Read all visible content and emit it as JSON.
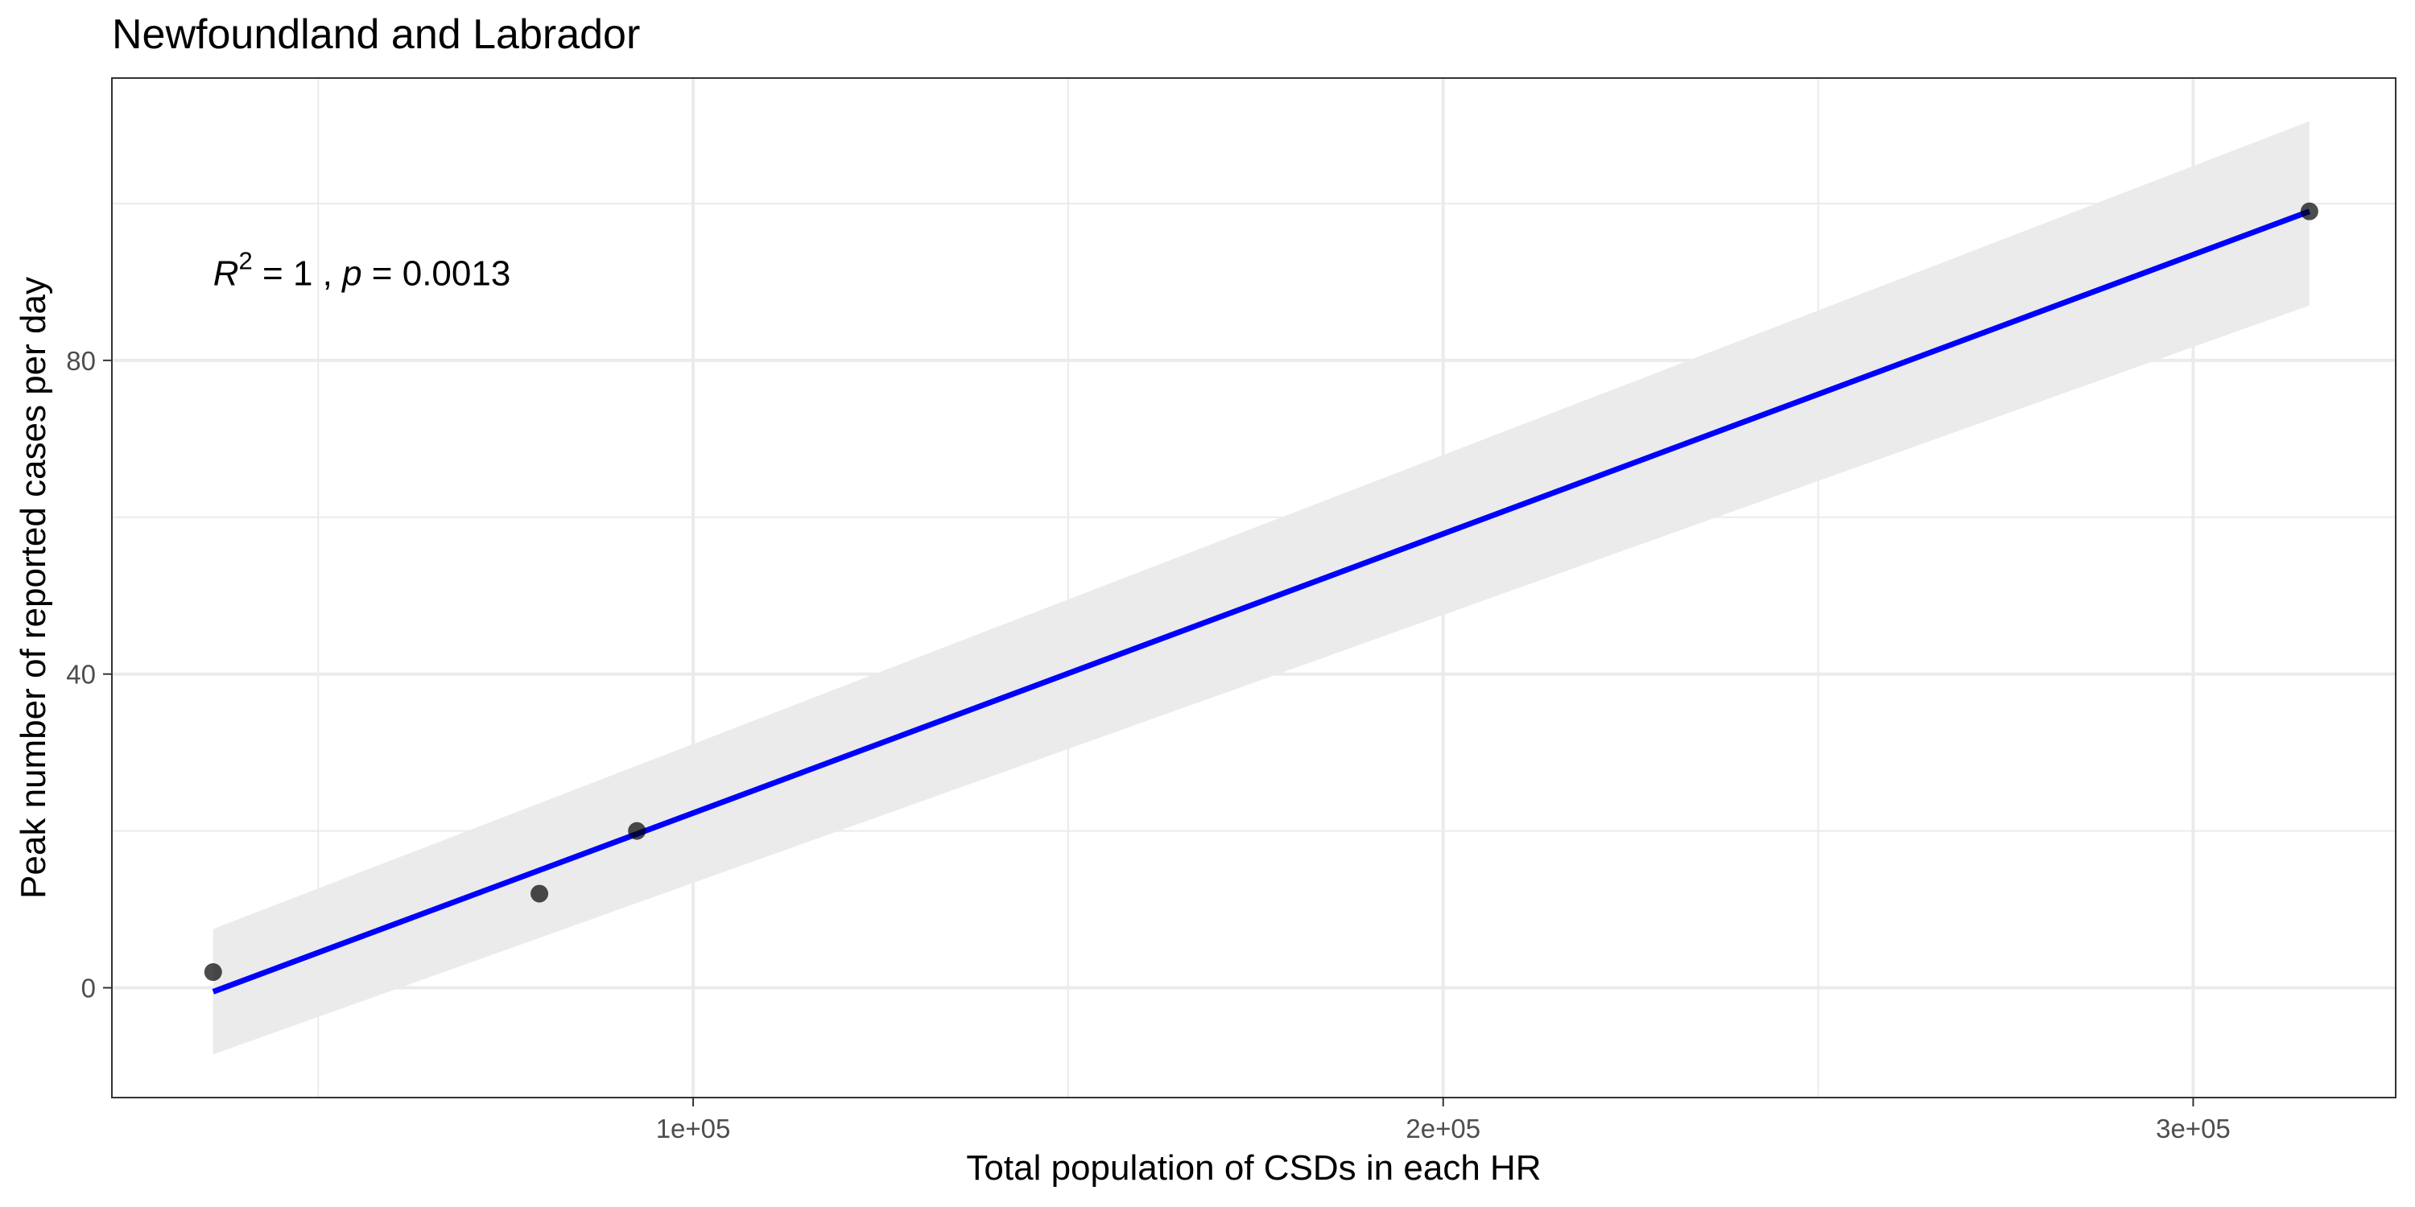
{
  "chart_data": {
    "type": "scatter",
    "title": "Newfoundland and Labrador",
    "xlabel": "Total population of CSDs in each HR",
    "ylabel": "Peak number of reported cases per day",
    "x_ticks": [
      {
        "value": 100000,
        "label": "1e+05"
      },
      {
        "value": 200000,
        "label": "2e+05"
      },
      {
        "value": 300000,
        "label": "3e+05"
      }
    ],
    "y_ticks": [
      {
        "value": 0,
        "label": "0"
      },
      {
        "value": 40,
        "label": "40"
      },
      {
        "value": 80,
        "label": "80"
      }
    ],
    "xlim": [
      22500,
      327000
    ],
    "ylim": [
      -14,
      116
    ],
    "grid": true,
    "points": [
      {
        "x": 36000,
        "y": 2
      },
      {
        "x": 79500,
        "y": 12
      },
      {
        "x": 92500,
        "y": 20
      },
      {
        "x": 315500,
        "y": 99
      }
    ],
    "fit_line": {
      "color": "#0000ff",
      "x": [
        36000,
        315500
      ],
      "y": [
        -0.5,
        99
      ]
    },
    "confidence_band": {
      "color": "#ebebeb",
      "x": [
        36000,
        315500
      ],
      "upper": [
        7.5,
        110.5
      ],
      "lower": [
        -8.5,
        87
      ]
    },
    "annotation": {
      "r_symbol": "R",
      "r_exponent": "2",
      "r_value_text": " = 1 , ",
      "p_symbol": "p",
      "p_value_text": " = 0.0013",
      "x": 36000,
      "y": 91
    }
  }
}
